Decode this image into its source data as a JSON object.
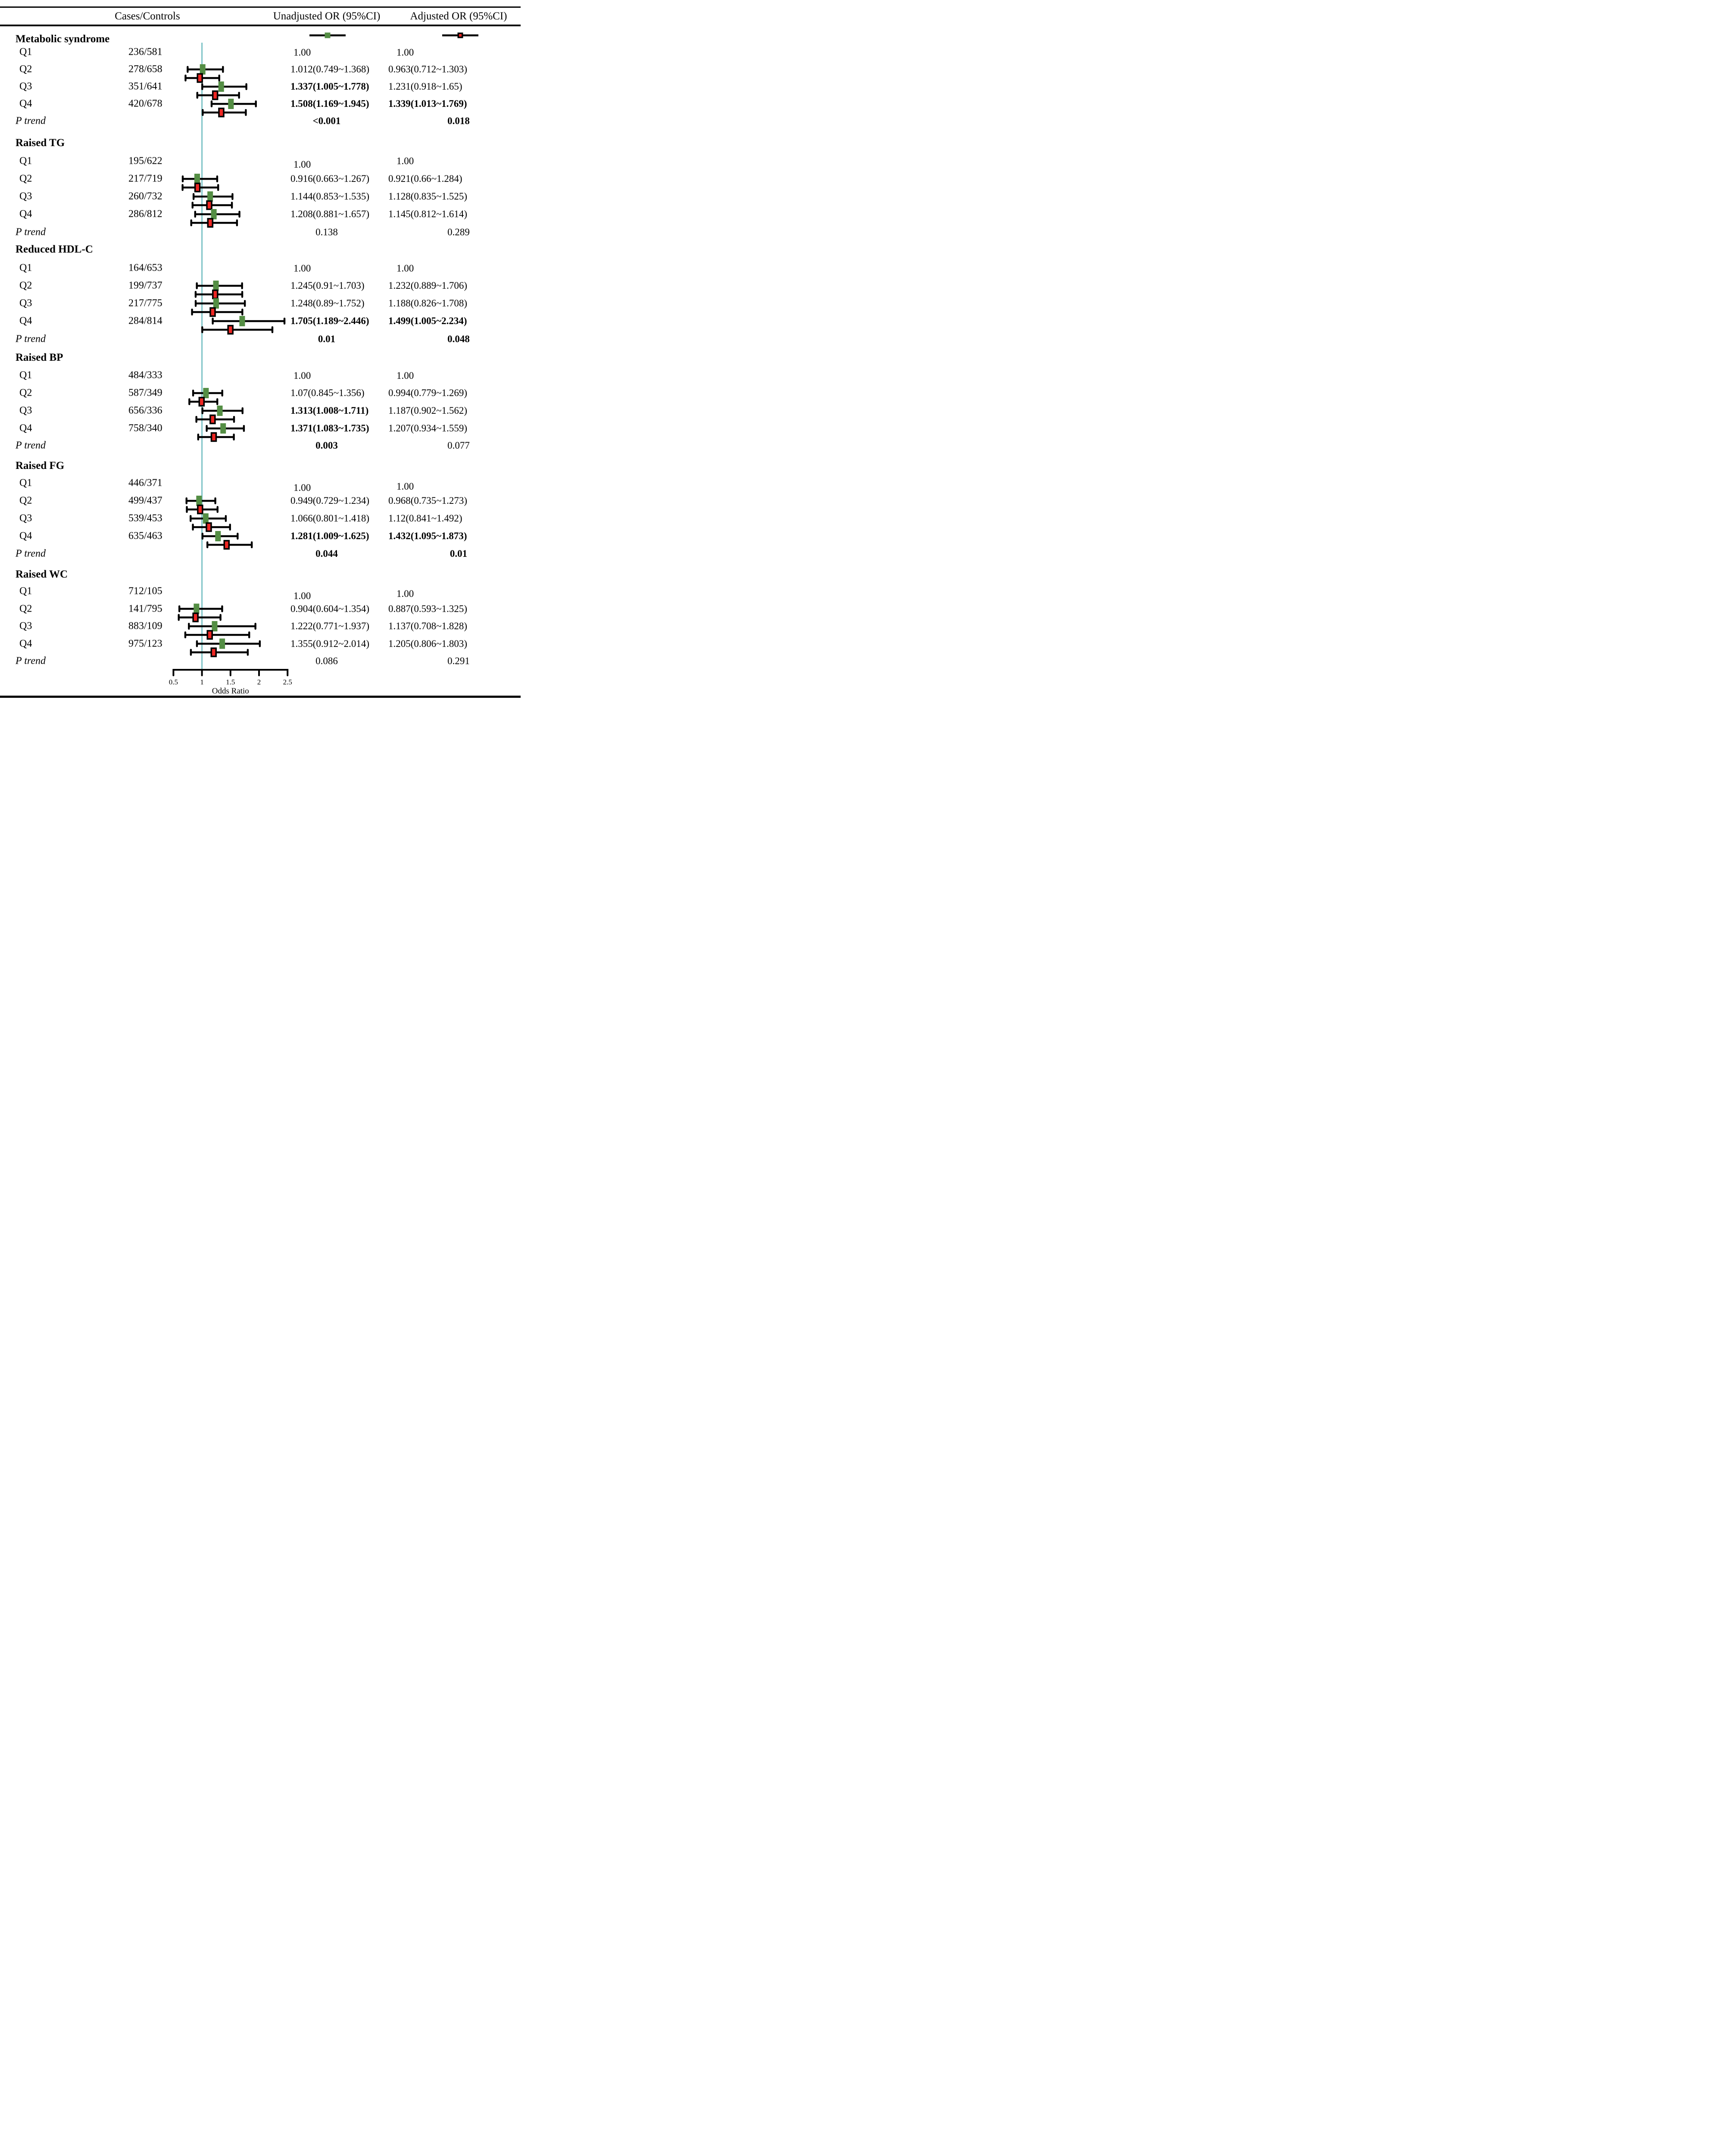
{
  "header": {
    "col_cases": "Cases/Controls",
    "col_unadjusted": "Unadjusted OR (95%CI)",
    "col_adjusted": "Adjusted OR (95%CI)"
  },
  "colors": {
    "unadjusted_marker": "#548e44",
    "adjusted_marker": "#ee2723",
    "marker_edge": "#000000",
    "ci_bar": "#000000",
    "reference_line": "#7cc3c6",
    "text": "#000000"
  },
  "chart_data": {
    "type": "forest",
    "x_axis": {
      "label": "Odds Ratio",
      "ticks": [
        "0.5",
        "1",
        "1.5",
        "2",
        "2.5"
      ],
      "min": 0.5,
      "max": 2.5,
      "ref_line": 1
    },
    "legend": [
      {
        "series": "Unadjusted OR (95%CI)",
        "color": "#548e44"
      },
      {
        "series": "Adjusted OR (95%CI)",
        "color": "#ee2723"
      }
    ],
    "groups": [
      {
        "title": "Metabolic syndrome",
        "rows": [
          {
            "label": "Q1",
            "cases_controls": "236/581",
            "unadjusted": {
              "text": "1.00",
              "bold": false
            },
            "adjusted": {
              "text": "1.00",
              "bold": false
            }
          },
          {
            "label": "Q2",
            "cases_controls": "278/658",
            "unadjusted": {
              "text": "1.012(0.749~1.368)",
              "or": 1.012,
              "lo": 0.749,
              "hi": 1.368,
              "bold": false
            },
            "adjusted": {
              "text": "0.963(0.712~1.303)",
              "or": 0.963,
              "lo": 0.712,
              "hi": 1.303,
              "bold": false
            }
          },
          {
            "label": "Q3",
            "cases_controls": "351/641",
            "unadjusted": {
              "text": "1.337(1.005~1.778)",
              "or": 1.337,
              "lo": 1.005,
              "hi": 1.778,
              "bold": true
            },
            "adjusted": {
              "text": "1.231(0.918~1.65)",
              "or": 1.231,
              "lo": 0.918,
              "hi": 1.65,
              "bold": false
            }
          },
          {
            "label": "Q4",
            "cases_controls": "420/678",
            "unadjusted": {
              "text": "1.508(1.169~1.945)",
              "or": 1.508,
              "lo": 1.169,
              "hi": 1.945,
              "bold": true
            },
            "adjusted": {
              "text": "1.339(1.013~1.769)",
              "or": 1.339,
              "lo": 1.013,
              "hi": 1.769,
              "bold": true
            }
          }
        ],
        "p_trend": {
          "label": "P trend",
          "unadjusted": {
            "text": "<0.001",
            "bold": true
          },
          "adjusted": {
            "text": "0.018",
            "bold": true
          }
        }
      },
      {
        "title": "Raised TG",
        "rows": [
          {
            "label": "Q1",
            "cases_controls": "195/622",
            "unadjusted": {
              "text": "1.00",
              "bold": false
            },
            "adjusted": {
              "text": "1.00",
              "bold": false
            }
          },
          {
            "label": "Q2",
            "cases_controls": "217/719",
            "unadjusted": {
              "text": "0.916(0.663~1.267)",
              "or": 0.916,
              "lo": 0.663,
              "hi": 1.267,
              "bold": false
            },
            "adjusted": {
              "text": "0.921(0.66~1.284)",
              "or": 0.921,
              "lo": 0.66,
              "hi": 1.284,
              "bold": false
            }
          },
          {
            "label": "Q3",
            "cases_controls": "260/732",
            "unadjusted": {
              "text": "1.144(0.853~1.535)",
              "or": 1.144,
              "lo": 0.853,
              "hi": 1.535,
              "bold": false
            },
            "adjusted": {
              "text": "1.128(0.835~1.525)",
              "or": 1.128,
              "lo": 0.835,
              "hi": 1.525,
              "bold": false
            }
          },
          {
            "label": "Q4",
            "cases_controls": "286/812",
            "unadjusted": {
              "text": "1.208(0.881~1.657)",
              "or": 1.208,
              "lo": 0.881,
              "hi": 1.657,
              "bold": false
            },
            "adjusted": {
              "text": "1.145(0.812~1.614)",
              "or": 1.145,
              "lo": 0.812,
              "hi": 1.614,
              "bold": false
            }
          }
        ],
        "p_trend": {
          "label": "P trend",
          "unadjusted": {
            "text": "0.138",
            "bold": false
          },
          "adjusted": {
            "text": "0.289",
            "bold": false
          }
        }
      },
      {
        "title": "Reduced HDL-C",
        "rows": [
          {
            "label": "Q1",
            "cases_controls": "164/653",
            "unadjusted": {
              "text": "1.00",
              "bold": false
            },
            "adjusted": {
              "text": "1.00",
              "bold": false
            }
          },
          {
            "label": "Q2",
            "cases_controls": "199/737",
            "unadjusted": {
              "text": "1.245(0.91~1.703)",
              "or": 1.245,
              "lo": 0.91,
              "hi": 1.703,
              "bold": false
            },
            "adjusted": {
              "text": "1.232(0.889~1.706)",
              "or": 1.232,
              "lo": 0.889,
              "hi": 1.706,
              "bold": false
            }
          },
          {
            "label": "Q3",
            "cases_controls": "217/775",
            "unadjusted": {
              "text": "1.248(0.89~1.752)",
              "or": 1.248,
              "lo": 0.89,
              "hi": 1.752,
              "bold": false
            },
            "adjusted": {
              "text": "1.188(0.826~1.708)",
              "or": 1.188,
              "lo": 0.826,
              "hi": 1.708,
              "bold": false
            }
          },
          {
            "label": "Q4",
            "cases_controls": "284/814",
            "unadjusted": {
              "text": "1.705(1.189~2.446)",
              "or": 1.705,
              "lo": 1.189,
              "hi": 2.446,
              "bold": true
            },
            "adjusted": {
              "text": "1.499(1.005~2.234)",
              "or": 1.499,
              "lo": 1.005,
              "hi": 2.234,
              "bold": true
            }
          }
        ],
        "p_trend": {
          "label": "P trend",
          "unadjusted": {
            "text": "0.01",
            "bold": true
          },
          "adjusted": {
            "text": "0.048",
            "bold": true
          }
        }
      },
      {
        "title": "Raised BP",
        "rows": [
          {
            "label": "Q1",
            "cases_controls": "484/333",
            "unadjusted": {
              "text": "1.00",
              "bold": false
            },
            "adjusted": {
              "text": "1.00",
              "bold": false
            }
          },
          {
            "label": "Q2",
            "cases_controls": "587/349",
            "unadjusted": {
              "text": "1.07(0.845~1.356)",
              "or": 1.07,
              "lo": 0.845,
              "hi": 1.356,
              "bold": false
            },
            "adjusted": {
              "text": "0.994(0.779~1.269)",
              "or": 0.994,
              "lo": 0.779,
              "hi": 1.269,
              "bold": false
            }
          },
          {
            "label": "Q3",
            "cases_controls": "656/336",
            "unadjusted": {
              "text": "1.313(1.008~1.711)",
              "or": 1.313,
              "lo": 1.008,
              "hi": 1.711,
              "bold": true
            },
            "adjusted": {
              "text": "1.187(0.902~1.562)",
              "or": 1.187,
              "lo": 0.902,
              "hi": 1.562,
              "bold": false
            }
          },
          {
            "label": "Q4",
            "cases_controls": "758/340",
            "unadjusted": {
              "text": "1.371(1.083~1.735)",
              "or": 1.371,
              "lo": 1.083,
              "hi": 1.735,
              "bold": true
            },
            "adjusted": {
              "text": "1.207(0.934~1.559)",
              "or": 1.207,
              "lo": 0.934,
              "hi": 1.559,
              "bold": false
            }
          }
        ],
        "p_trend": {
          "label": "P trend",
          "unadjusted": {
            "text": "0.003",
            "bold": true
          },
          "adjusted": {
            "text": "0.077",
            "bold": false
          }
        }
      },
      {
        "title": "Raised FG",
        "rows": [
          {
            "label": "Q1",
            "cases_controls": "446/371",
            "unadjusted": {
              "text": "1.00",
              "bold": false
            },
            "adjusted": {
              "text": "1.00",
              "bold": false
            }
          },
          {
            "label": "Q2",
            "cases_controls": "499/437",
            "unadjusted": {
              "text": "0.949(0.729~1.234)",
              "or": 0.949,
              "lo": 0.729,
              "hi": 1.234,
              "bold": false
            },
            "adjusted": {
              "text": "0.968(0.735~1.273)",
              "or": 0.968,
              "lo": 0.735,
              "hi": 1.273,
              "bold": false
            }
          },
          {
            "label": "Q3",
            "cases_controls": "539/453",
            "unadjusted": {
              "text": "1.066(0.801~1.418)",
              "or": 1.066,
              "lo": 0.801,
              "hi": 1.418,
              "bold": false
            },
            "adjusted": {
              "text": "1.12(0.841~1.492)",
              "or": 1.12,
              "lo": 0.841,
              "hi": 1.492,
              "bold": false
            }
          },
          {
            "label": "Q4",
            "cases_controls": "635/463",
            "unadjusted": {
              "text": "1.281(1.009~1.625)",
              "or": 1.281,
              "lo": 1.009,
              "hi": 1.625,
              "bold": true
            },
            "adjusted": {
              "text": "1.432(1.095~1.873)",
              "or": 1.432,
              "lo": 1.095,
              "hi": 1.873,
              "bold": true
            }
          }
        ],
        "p_trend": {
          "label": "P trend",
          "unadjusted": {
            "text": "0.044",
            "bold": true
          },
          "adjusted": {
            "text": "0.01",
            "bold": true
          }
        }
      },
      {
        "title": "Raised WC",
        "rows": [
          {
            "label": "Q1",
            "cases_controls": "712/105",
            "unadjusted": {
              "text": "1.00",
              "bold": false
            },
            "adjusted": {
              "text": "1.00",
              "bold": false
            }
          },
          {
            "label": "Q2",
            "cases_controls": "141/795",
            "unadjusted": {
              "text": "0.904(0.604~1.354)",
              "or": 0.904,
              "lo": 0.604,
              "hi": 1.354,
              "bold": false
            },
            "adjusted": {
              "text": "0.887(0.593~1.325)",
              "or": 0.887,
              "lo": 0.593,
              "hi": 1.325,
              "bold": false
            }
          },
          {
            "label": "Q3",
            "cases_controls": "883/109",
            "unadjusted": {
              "text": "1.222(0.771~1.937)",
              "or": 1.222,
              "lo": 0.771,
              "hi": 1.937,
              "bold": false
            },
            "adjusted": {
              "text": "1.137(0.708~1.828)",
              "or": 1.137,
              "lo": 0.708,
              "hi": 1.828,
              "bold": false
            }
          },
          {
            "label": "Q4",
            "cases_controls": "975/123",
            "unadjusted": {
              "text": "1.355(0.912~2.014)",
              "or": 1.355,
              "lo": 0.912,
              "hi": 2.014,
              "bold": false
            },
            "adjusted": {
              "text": "1.205(0.806~1.803)",
              "or": 1.205,
              "lo": 0.806,
              "hi": 1.803,
              "bold": false
            }
          }
        ],
        "p_trend": {
          "label": "P trend",
          "unadjusted": {
            "text": "0.086",
            "bold": false
          },
          "adjusted": {
            "text": "0.291",
            "bold": false
          }
        }
      }
    ]
  }
}
